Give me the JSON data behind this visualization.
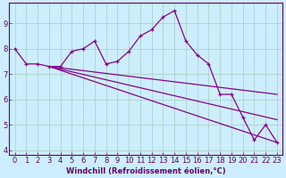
{
  "xlabel": "Windchill (Refroidissement éolien,°C)",
  "bg_color": "#cceeff",
  "line_color": "#880088",
  "grid_color": "#aaccbb",
  "font_color": "#660066",
  "font_size": 6,
  "x_data": [
    0,
    1,
    2,
    3,
    4,
    5,
    6,
    7,
    8,
    9,
    10,
    11,
    12,
    13,
    14,
    15,
    16,
    17,
    18,
    19,
    20,
    21,
    22,
    23
  ],
  "y_main": [
    8.0,
    7.4,
    7.4,
    7.3,
    7.3,
    7.9,
    8.0,
    8.3,
    7.4,
    7.5,
    7.9,
    8.5,
    8.75,
    9.25,
    9.5,
    8.3,
    7.75,
    7.4,
    6.2,
    6.2,
    5.3,
    4.4,
    5.0,
    4.3
  ],
  "fan_start_x": 3,
  "fan_start_y": 7.3,
  "fan_end_x": 23,
  "fan_end_y1": 6.2,
  "fan_end_y2": 5.2,
  "fan_end_y3": 4.3,
  "ylim": [
    3.8,
    9.8
  ],
  "xlim": [
    -0.5,
    23.5
  ],
  "yticks": [
    4,
    5,
    6,
    7,
    8,
    9
  ],
  "xticks": [
    0,
    1,
    2,
    3,
    4,
    5,
    6,
    7,
    8,
    9,
    10,
    11,
    12,
    13,
    14,
    15,
    16,
    17,
    18,
    19,
    20,
    21,
    22,
    23
  ]
}
